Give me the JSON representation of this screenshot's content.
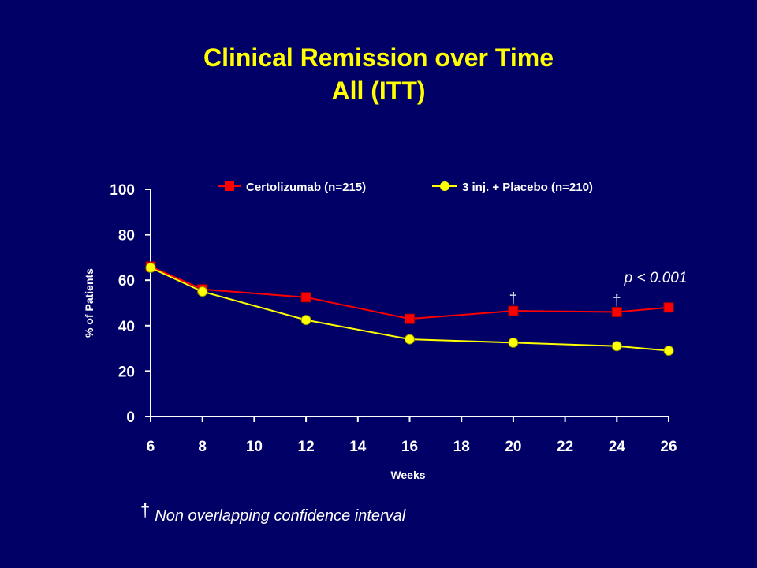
{
  "slide": {
    "title_line1": "Clinical Remission over Time",
    "title_line2": "All (ITT)",
    "footnote_symbol": "†",
    "footnote_text": "Non overlapping confidence interval"
  },
  "colors": {
    "background": "#000066",
    "title": "#ffff00",
    "text": "#ffffff",
    "certolizumab": "#ff0000",
    "placebo": "#ffff00"
  },
  "chart_data": {
    "type": "line",
    "title": "",
    "xlabel": "Weeks",
    "ylabel": "% of Patients",
    "xlim": [
      6,
      26
    ],
    "ylim": [
      0,
      100
    ],
    "xticks": [
      6,
      8,
      10,
      12,
      14,
      16,
      18,
      20,
      22,
      24,
      26
    ],
    "yticks": [
      0,
      20,
      40,
      60,
      80,
      100
    ],
    "grid": false,
    "legend_position": "top",
    "series": [
      {
        "name": "Certolizumab (n=215)",
        "marker": "square",
        "color": "#ff0000",
        "x": [
          6,
          8,
          12,
          16,
          20,
          24,
          26
        ],
        "y": [
          66,
          56,
          52.5,
          43,
          46.5,
          46,
          48
        ]
      },
      {
        "name": "3 inj. + Placebo (n=210)",
        "marker": "circle",
        "color": "#ffff00",
        "x": [
          6,
          8,
          12,
          16,
          20,
          24,
          26
        ],
        "y": [
          65.5,
          55,
          42.5,
          34,
          32.5,
          31,
          29
        ]
      }
    ],
    "annotations": [
      {
        "text": "†",
        "x": 20,
        "y": 50
      },
      {
        "text": "†",
        "x": 24,
        "y": 49
      },
      {
        "text": "p < 0.001",
        "x": 25.5,
        "y": 59,
        "italic": true
      }
    ]
  }
}
